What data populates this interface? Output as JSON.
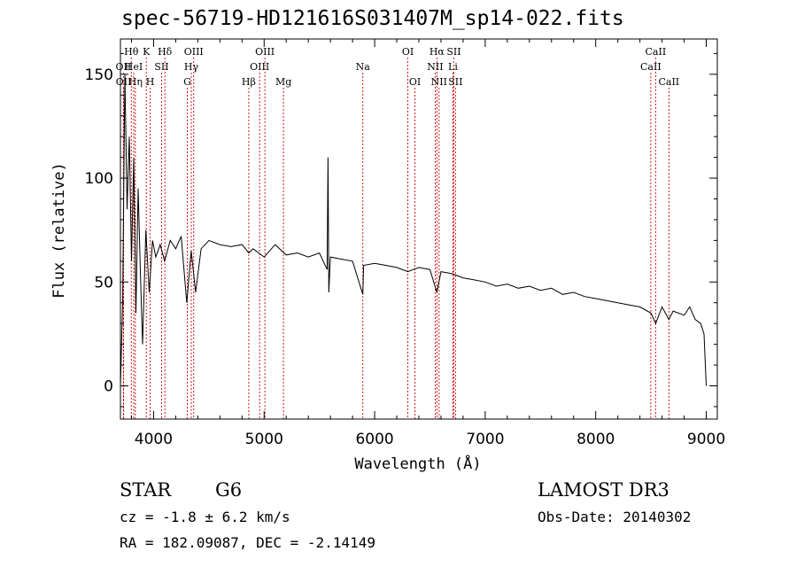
{
  "header": {
    "title": "spec-56719-HD121616S031407M_sp14-022.fits"
  },
  "info": {
    "object_class": "STAR",
    "subclass": "G6",
    "velocity": "cz = -1.8 ± 6.2 km/s",
    "coords": "RA = 182.09087, DEC =  -2.14149",
    "survey": "LAMOST DR3",
    "obs_date": "Obs-Date: 20140302"
  },
  "chart_data": {
    "type": "line",
    "title": "spec-56719-HD121616S031407M_sp14-022.fits",
    "xlabel": "Wavelength (Å)",
    "ylabel": "Flux (relative)",
    "xlim": [
      3700,
      9100
    ],
    "ylim": [
      -16,
      167
    ],
    "xticks": [
      4000,
      5000,
      6000,
      7000,
      8000,
      9000
    ],
    "yticks": [
      0,
      50,
      100,
      150
    ],
    "line_color": "#000000",
    "marker_color": "#cc0000",
    "series": [
      {
        "name": "flux",
        "x": [
          3700,
          3720,
          3740,
          3760,
          3780,
          3800,
          3820,
          3840,
          3860,
          3880,
          3900,
          3930,
          3960,
          3990,
          4020,
          4060,
          4100,
          4150,
          4200,
          4250,
          4300,
          4340,
          4380,
          4430,
          4500,
          4600,
          4700,
          4800,
          4861,
          4900,
          5000,
          5100,
          5200,
          5300,
          5400,
          5500,
          5570,
          5578,
          5585,
          5600,
          5700,
          5800,
          5893,
          5900,
          6000,
          6100,
          6200,
          6300,
          6400,
          6500,
          6563,
          6600,
          6700,
          6800,
          6900,
          7000,
          7100,
          7200,
          7300,
          7400,
          7500,
          7600,
          7700,
          7800,
          7900,
          8000,
          8100,
          8200,
          8300,
          8400,
          8500,
          8542,
          8600,
          8662,
          8700,
          8800,
          8850,
          8900,
          8950,
          8980,
          9000
        ],
        "y": [
          0,
          40,
          150,
          85,
          120,
          60,
          110,
          35,
          95,
          55,
          20,
          75,
          45,
          70,
          62,
          68,
          60,
          70,
          66,
          72,
          40,
          65,
          45,
          66,
          70,
          68,
          67,
          68,
          64,
          66,
          62,
          68,
          63,
          64,
          62,
          64,
          56,
          110,
          45,
          62,
          61,
          60,
          44,
          58,
          59,
          58,
          57,
          55,
          57,
          56,
          45,
          55,
          54,
          52,
          51,
          50,
          48,
          49,
          47,
          48,
          46,
          47,
          44,
          45,
          43,
          42,
          41,
          40,
          39,
          38,
          35,
          30,
          38,
          32,
          36,
          34,
          38,
          32,
          30,
          25,
          0
        ]
      }
    ],
    "line_markers": [
      {
        "label": "Hθ",
        "x": 3798,
        "row": 1
      },
      {
        "label": "OII",
        "x": 3727,
        "row": 2
      },
      {
        "label": "HeI",
        "x": 3820,
        "row": 2
      },
      {
        "label": "OII",
        "x": 3729,
        "row": 3
      },
      {
        "label": "Hη",
        "x": 3835,
        "row": 3
      },
      {
        "label": "K",
        "x": 3934,
        "row": 1
      },
      {
        "label": "SII",
        "x": 4072,
        "row": 2
      },
      {
        "label": "H",
        "x": 3969,
        "row": 3
      },
      {
        "label": "Hδ",
        "x": 4102,
        "row": 1
      },
      {
        "label": "OIII",
        "x": 4363,
        "row": 1
      },
      {
        "label": "Hγ",
        "x": 4341,
        "row": 2
      },
      {
        "label": "G",
        "x": 4305,
        "row": 3
      },
      {
        "label": "Hβ",
        "x": 4861,
        "row": 3
      },
      {
        "label": "OIII",
        "x": 5007,
        "row": 1
      },
      {
        "label": "OIII",
        "x": 4959,
        "row": 2
      },
      {
        "label": "Mg",
        "x": 5175,
        "row": 3
      },
      {
        "label": "Na",
        "x": 5893,
        "row": 2
      },
      {
        "label": "OI",
        "x": 6300,
        "row": 1
      },
      {
        "label": "OI",
        "x": 6364,
        "row": 3
      },
      {
        "label": "Hα",
        "x": 6563,
        "row": 1
      },
      {
        "label": "SII",
        "x": 6716,
        "row": 1
      },
      {
        "label": "NII",
        "x": 6548,
        "row": 2
      },
      {
        "label": "Li",
        "x": 6708,
        "row": 2
      },
      {
        "label": "NII",
        "x": 6583,
        "row": 3
      },
      {
        "label": "SII",
        "x": 6731,
        "row": 3
      },
      {
        "label": "CaII",
        "x": 8542,
        "row": 1
      },
      {
        "label": "CaII",
        "x": 8498,
        "row": 2
      },
      {
        "label": "CaII",
        "x": 8662,
        "row": 3
      }
    ]
  }
}
